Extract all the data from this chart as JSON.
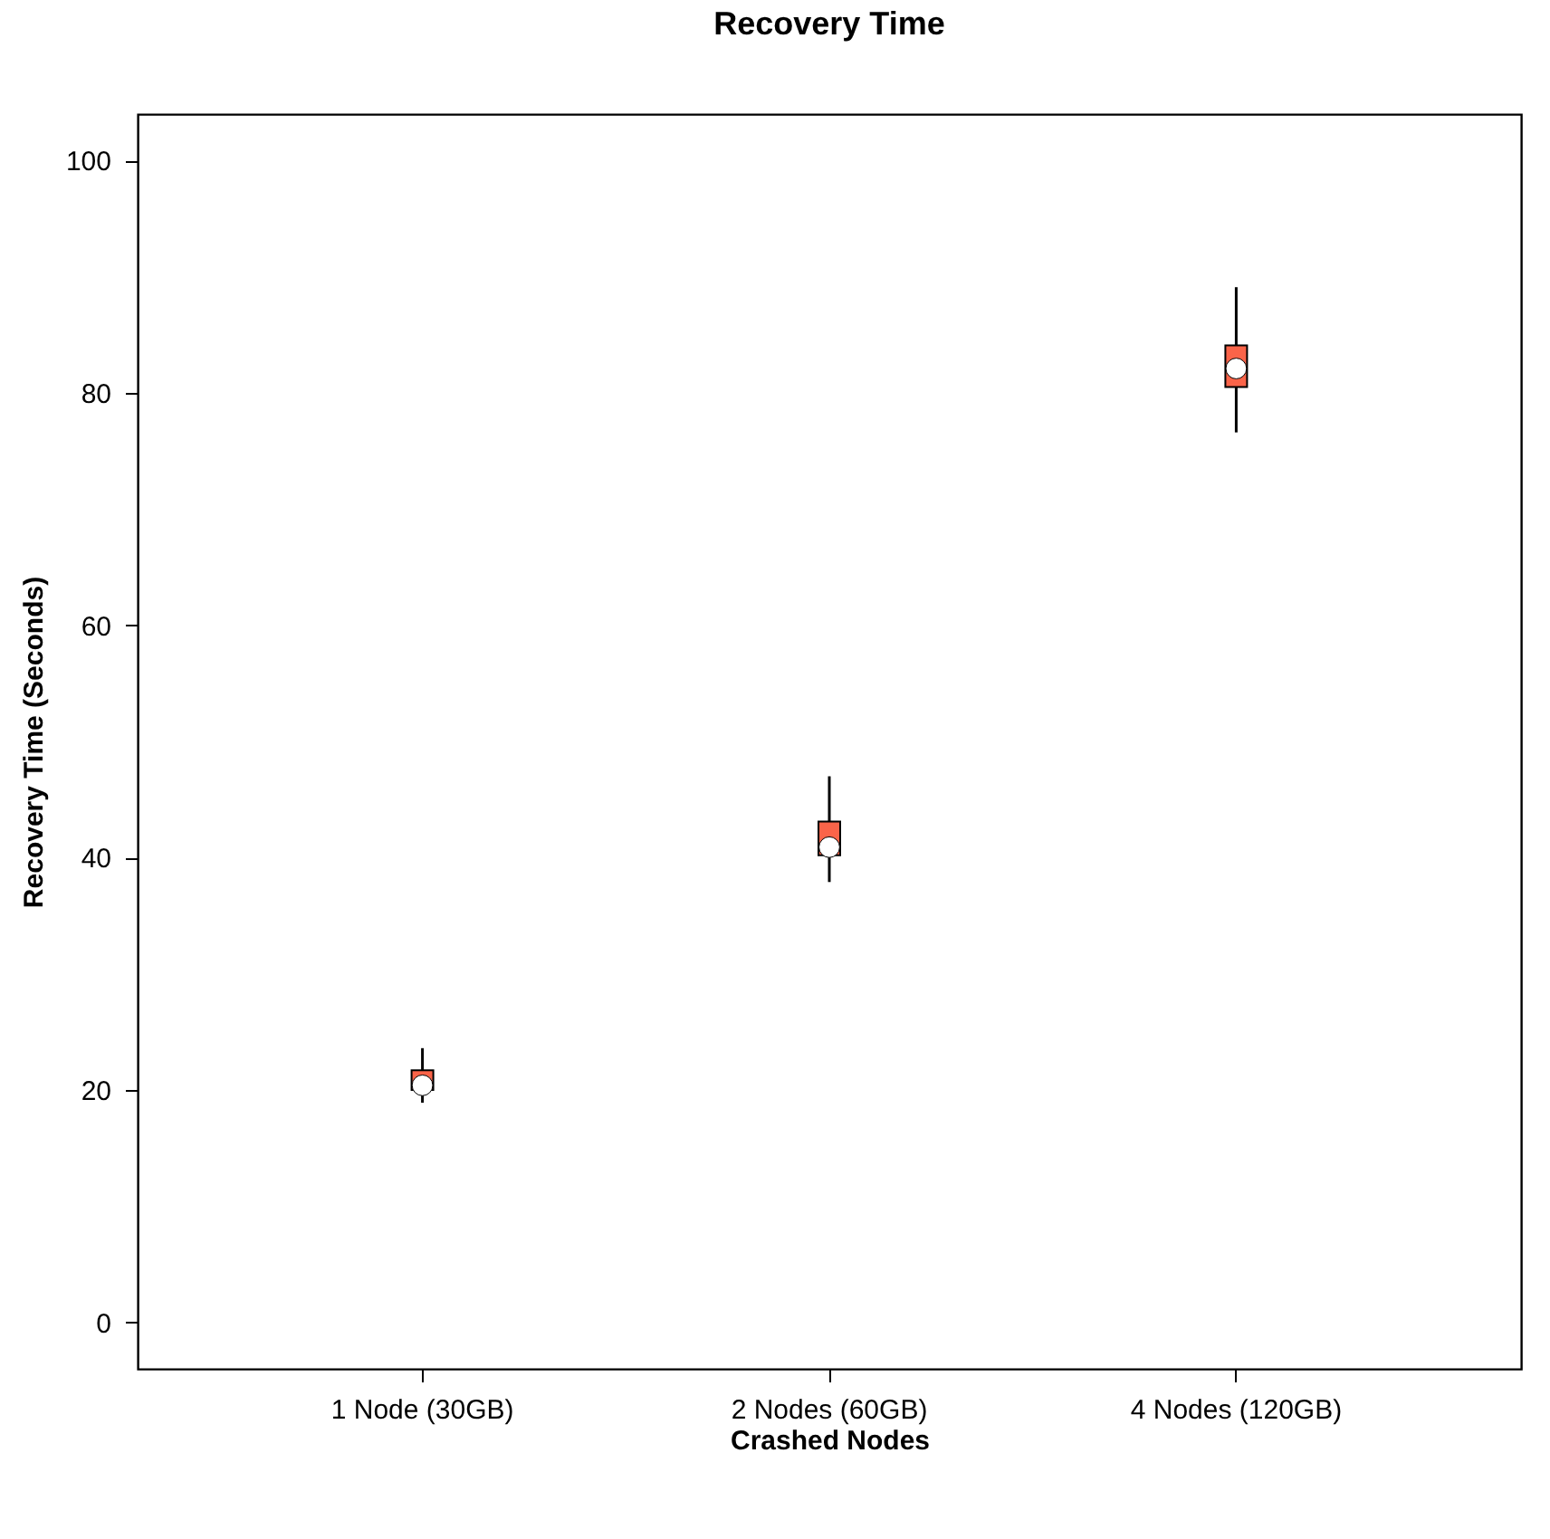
{
  "chart_data": {
    "type": "box",
    "title": "Recovery Time",
    "xlabel": "Crashed Nodes",
    "ylabel": "Recovery Time (Seconds)",
    "categories": [
      "1 Node (30GB)",
      "2 Nodes (60GB)",
      "4 Nodes (120GB)"
    ],
    "series": [
      {
        "color": "#fa6449",
        "boxes": [
          {
            "low": 18.9,
            "q1": 20.0,
            "median": 20.4,
            "q3": 21.7,
            "high": 23.6
          },
          {
            "low": 37.9,
            "q1": 40.2,
            "median": 40.9,
            "q3": 43.1,
            "high": 47.0
          },
          {
            "low": 76.6,
            "q1": 80.5,
            "median": 82.1,
            "q3": 84.1,
            "high": 89.1
          }
        ]
      }
    ],
    "ylim": [
      -4,
      104
    ],
    "yticks": [
      0,
      20,
      40,
      60,
      80,
      100
    ],
    "grid": false
  }
}
